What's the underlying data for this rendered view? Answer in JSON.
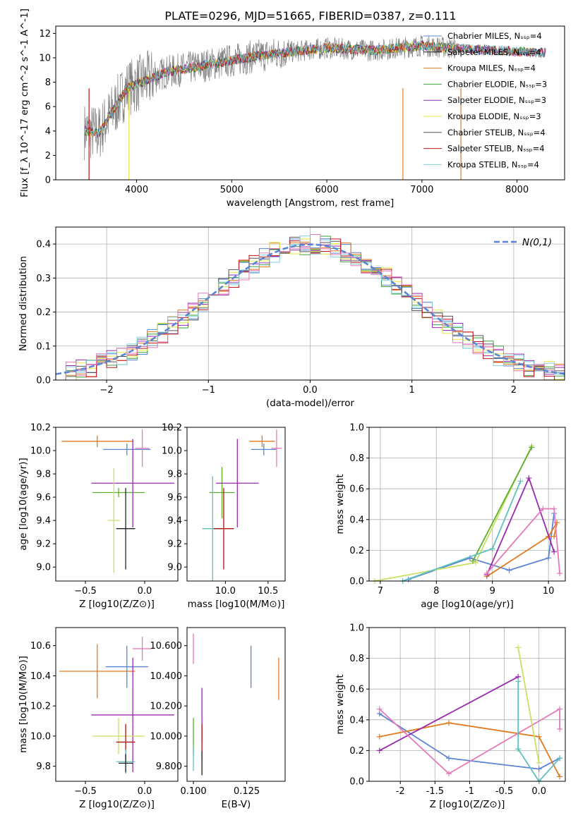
{
  "title": "PLATE=0296, MJD=51665, FIBERID=0387, z=0.111",
  "legend": [
    "Chabrier MILES, N_SSP=4",
    "Salpeter MILES, N_SSP=4",
    "Kroupa MILES, N_SSP=4",
    "Chabrier ELODIE, N_SSP=3",
    "Salpeter ELODIE, N_SSP=3",
    "Kroupa ELODIE, N_SSP=3",
    "Chabrier STELIB, N_SSP=4",
    "Salpeter STELIB, N_SSP=4",
    "Kroupa STELIB, N_SSP=4"
  ],
  "series_colors": [
    "#5b84d4",
    "#1f1f1f",
    "#e07b1f",
    "#3aa23a",
    "#9a2ab0",
    "#e6e640",
    "#555555",
    "#c0141c",
    "#7ed2e0"
  ],
  "colors": {
    "blue": "#5b84d4",
    "orange": "#e07b1f",
    "green": "#5fae2f",
    "purple": "#9a2ab0",
    "pink": "#e67ab8",
    "lime": "#c9e063",
    "teal": "#5fbfbf",
    "darkred": "#b01010",
    "black": "#222222"
  },
  "chart_data": [
    {
      "id": "spectrum",
      "type": "line",
      "xlabel": "wavelength [Angstrom, rest frame]",
      "ylabel": "Flux [f_λ 10^-17 erg cm^-2 s^-1 A^-1]",
      "xlim": [
        3150,
        8500
      ],
      "ylim": [
        0,
        12.6
      ],
      "xticks": [
        4000,
        5000,
        6000,
        7000,
        8000
      ],
      "yticks": [
        0,
        2,
        4,
        6,
        8,
        10,
        12
      ],
      "data_envelope": {
        "x": [
          3450,
          3600,
          3900,
          4300,
          4800,
          5300,
          6000,
          6500,
          7000,
          7300,
          8300
        ],
        "y": [
          4.0,
          3.8,
          7.5,
          8.8,
          9.5,
          10.2,
          10.8,
          10.6,
          11.0,
          10.8,
          10.4
        ]
      }
    },
    {
      "id": "residuals",
      "type": "line",
      "xlabel": "(data-model)/error",
      "ylabel": "Normed distribution",
      "xlim": [
        -2.5,
        2.5
      ],
      "ylim": [
        0,
        0.45
      ],
      "xticks": [
        -2,
        -1,
        0,
        1,
        2
      ],
      "yticks": [
        0.0,
        0.1,
        0.2,
        0.3,
        0.4
      ],
      "series": [
        {
          "name": "N(0,1)",
          "mean": 0,
          "sigma": 1
        }
      ]
    },
    {
      "id": "age_vs_Z",
      "type": "scatter",
      "xlabel": "Z [log10(Z/Z⊙)]",
      "ylabel": "age [log10(age/yr)]",
      "xlim": [
        -0.75,
        0.28
      ],
      "ylim": [
        8.88,
        10.2
      ],
      "xticks": [
        -0.5,
        0.0
      ],
      "yticks": [
        9.0,
        9.2,
        9.4,
        9.6,
        9.8,
        10.0,
        10.2
      ],
      "points": [
        {
          "x": -0.4,
          "y": 10.08,
          "xe": 0.3,
          "ye": 0.05,
          "color": "orange"
        },
        {
          "x": -0.15,
          "y": 10.01,
          "xe": 0.2,
          "ye": 0.05,
          "color": "blue"
        },
        {
          "x": -0.02,
          "y": 10.02,
          "xe": 0.06,
          "ye": 0.16,
          "color": "pink"
        },
        {
          "x": -0.22,
          "y": 9.64,
          "xe": 0.22,
          "ye": 0.04,
          "color": "green"
        },
        {
          "x": -0.1,
          "y": 9.72,
          "xe": 0.35,
          "ye": 0.38,
          "color": "purple"
        },
        {
          "x": -0.26,
          "y": 9.4,
          "xe": 0.05,
          "ye": 0.45,
          "color": "lime"
        },
        {
          "x": -0.16,
          "y": 9.33,
          "xe": 0.08,
          "ye": 0.35,
          "color": "black"
        }
      ]
    },
    {
      "id": "age_vs_mass",
      "type": "scatter",
      "xlabel": "mass [log10(M/M⊙)]",
      "ylabel": "",
      "xlim": [
        9.55,
        10.7
      ],
      "ylim": [
        8.88,
        10.2
      ],
      "xticks": [
        10.0,
        10.5
      ],
      "yticks": [
        9.0,
        9.2,
        9.4,
        9.6,
        9.8,
        10.0,
        10.2
      ],
      "points": [
        {
          "x": 10.43,
          "y": 10.08,
          "xe": 0.15,
          "ye": 0.05,
          "color": "orange"
        },
        {
          "x": 10.45,
          "y": 10.01,
          "xe": 0.15,
          "ye": 0.05,
          "color": "blue"
        },
        {
          "x": 10.6,
          "y": 10.02,
          "xe": 0.06,
          "ye": 0.16,
          "color": "pink"
        },
        {
          "x": 9.96,
          "y": 9.64,
          "xe": 0.15,
          "ye": 0.22,
          "color": "green"
        },
        {
          "x": 10.14,
          "y": 9.72,
          "xe": 0.25,
          "ye": 0.38,
          "color": "purple"
        },
        {
          "x": 9.85,
          "y": 9.33,
          "xe": 0.12,
          "ye": 0.45,
          "color": "teal"
        },
        {
          "x": 9.98,
          "y": 9.33,
          "xe": 0.12,
          "ye": 0.35,
          "color": "darkred"
        }
      ]
    },
    {
      "id": "mass_weight_vs_age",
      "type": "line",
      "xlabel": "age [log10(age/yr)]",
      "ylabel": "mass weight",
      "xlim": [
        6.8,
        10.3
      ],
      "ylim": [
        0,
        1.0
      ],
      "xticks": [
        7,
        8,
        9,
        10
      ],
      "yticks": [
        0.0,
        0.2,
        0.4,
        0.6,
        0.8,
        1.0
      ],
      "series": [
        {
          "color": "blue",
          "x": [
            7.5,
            8.6,
            9.3,
            10.0,
            10.1
          ],
          "y": [
            0.01,
            0.15,
            0.07,
            0.15,
            0.44
          ]
        },
        {
          "color": "orange",
          "x": [
            8.9,
            10.0,
            10.15,
            10.1
          ],
          "y": [
            0.03,
            0.29,
            0.38,
            0.29
          ]
        },
        {
          "color": "purple",
          "x": [
            8.9,
            9.65,
            10.1
          ],
          "y": [
            0.04,
            0.67,
            0.19
          ]
        },
        {
          "color": "pink",
          "x": [
            8.9,
            9.9,
            10.1,
            10.2
          ],
          "y": [
            0.05,
            0.47,
            0.47,
            0.05
          ]
        },
        {
          "color": "lime",
          "x": [
            6.9,
            8.7,
            9.7
          ],
          "y": [
            0.0,
            0.12,
            0.88
          ]
        },
        {
          "color": "green",
          "x": [
            8.65,
            9.7
          ],
          "y": [
            0.13,
            0.87
          ]
        },
        {
          "color": "teal",
          "x": [
            7.4,
            9.0,
            9.5
          ],
          "y": [
            0.0,
            0.21,
            0.65
          ]
        }
      ]
    },
    {
      "id": "mass_vs_Z",
      "type": "scatter",
      "xlabel": "Z [log10(Z/Z⊙)]",
      "ylabel": "mass [log10(M/M⊙)]",
      "xlim": [
        -0.75,
        0.28
      ],
      "ylim": [
        9.7,
        10.72
      ],
      "xticks": [
        -0.5,
        0.0
      ],
      "yticks": [
        9.8,
        10.0,
        10.2,
        10.4,
        10.6
      ],
      "points": [
        {
          "x": -0.4,
          "y": 10.43,
          "xe": 0.32,
          "ye": 0.18,
          "color": "orange"
        },
        {
          "x": -0.15,
          "y": 10.46,
          "xe": 0.18,
          "ye": 0.14,
          "color": "blue"
        },
        {
          "x": -0.02,
          "y": 10.58,
          "xe": 0.08,
          "ye": 0.08,
          "color": "pink"
        },
        {
          "x": -0.1,
          "y": 10.14,
          "xe": 0.35,
          "ye": 0.38,
          "color": "purple"
        },
        {
          "x": -0.22,
          "y": 10.0,
          "xe": 0.22,
          "ye": 0.12,
          "color": "lime"
        },
        {
          "x": -0.16,
          "y": 9.96,
          "xe": 0.08,
          "ye": 0.12,
          "color": "darkred"
        },
        {
          "x": -0.16,
          "y": 9.83,
          "xe": 0.08,
          "ye": 0.08,
          "color": "teal"
        },
        {
          "x": -0.16,
          "y": 9.82,
          "xe": 0.06,
          "ye": 0.06,
          "color": "black"
        }
      ]
    },
    {
      "id": "mass_vs_EBV",
      "type": "scatter",
      "xlabel": "E(B-V)",
      "ylabel": "",
      "xlim": [
        0.097,
        0.143
      ],
      "ylim": [
        9.7,
        10.72
      ],
      "xticks": [
        0.1,
        0.125
      ],
      "yticks": [
        9.8,
        10.0,
        10.2,
        10.4,
        10.6
      ],
      "points": [
        {
          "x": 0.1,
          "y": 10.58,
          "ye": 0.1,
          "color": "pink"
        },
        {
          "x": 0.127,
          "y": 10.46,
          "ye": 0.14,
          "color": "blue"
        },
        {
          "x": 0.14,
          "y": 10.38,
          "ye": 0.14,
          "color": "orange"
        },
        {
          "x": 0.104,
          "y": 10.14,
          "ye": 0.18,
          "color": "purple"
        },
        {
          "x": 0.104,
          "y": 9.96,
          "ye": 0.12,
          "color": "darkred"
        },
        {
          "x": 0.1,
          "y": 10.0,
          "ye": 0.12,
          "color": "green"
        },
        {
          "x": 0.1,
          "y": 9.85,
          "ye": 0.08,
          "color": "teal"
        },
        {
          "x": 0.104,
          "y": 9.82,
          "ye": 0.08,
          "color": "black"
        }
      ]
    },
    {
      "id": "mass_weight_vs_Z",
      "type": "line",
      "xlabel": "Z [log10(Z/Z⊙)]",
      "ylabel": "mass weight",
      "xlim": [
        -2.45,
        0.38
      ],
      "ylim": [
        0,
        1.0
      ],
      "xticks": [
        -2.0,
        -1.5,
        -1.0,
        -0.5,
        0.0
      ],
      "yticks": [
        0.0,
        0.2,
        0.4,
        0.6,
        0.8,
        1.0
      ],
      "series": [
        {
          "color": "blue",
          "x": [
            -2.3,
            -1.3,
            0.0,
            0.3
          ],
          "y": [
            0.44,
            0.15,
            0.08,
            0.15
          ]
        },
        {
          "color": "orange",
          "x": [
            -2.3,
            -1.3,
            0.0,
            0.3
          ],
          "y": [
            0.29,
            0.38,
            0.29,
            0.03
          ]
        },
        {
          "color": "purple",
          "x": [
            -2.3,
            -0.3
          ],
          "y": [
            0.2,
            0.68
          ]
        },
        {
          "color": "pink",
          "x": [
            -2.3,
            -1.3,
            0.3,
            0.3
          ],
          "y": [
            0.47,
            0.05,
            0.47,
            0.34
          ]
        },
        {
          "color": "lime",
          "x": [
            -0.3,
            0.0
          ],
          "y": [
            0.87,
            0.12
          ]
        },
        {
          "color": "teal",
          "x": [
            -0.3,
            -0.3,
            0.0,
            0.3
          ],
          "y": [
            0.65,
            0.21,
            0.0,
            0.15
          ]
        }
      ]
    }
  ]
}
